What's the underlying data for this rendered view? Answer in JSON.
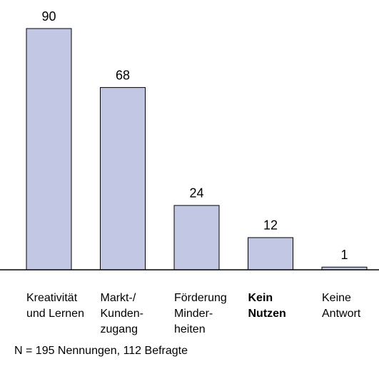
{
  "chart_data": {
    "type": "bar",
    "categories": [
      [
        "Kreativität",
        "und Lernen"
      ],
      [
        "Markt-/",
        "Kunden-",
        "zugang"
      ],
      [
        "Förderung",
        "Minder-",
        "heiten"
      ],
      [
        "Kein",
        "Nutzen"
      ],
      [
        "Keine",
        "Antwort"
      ]
    ],
    "values": [
      90,
      68,
      24,
      12,
      1
    ],
    "color": "#c2c8e4",
    "ylim": [
      0,
      90
    ],
    "note": "N = 195 Nennungen, 112 Befragte"
  }
}
